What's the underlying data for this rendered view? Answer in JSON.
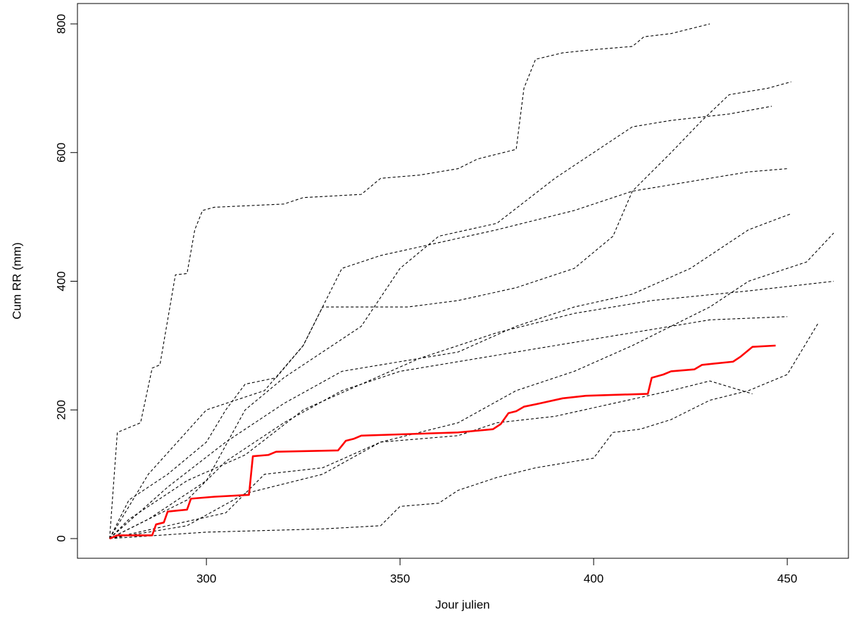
{
  "chart_data": {
    "type": "line",
    "xlabel": "Jour julien",
    "ylabel": "Cum RR (mm)",
    "xlim": [
      266.7,
      465.8
    ],
    "ylim": [
      -30.6,
      831.7
    ],
    "xticks": [
      300,
      350,
      400,
      450
    ],
    "yticks": [
      0,
      200,
      400,
      600,
      800
    ],
    "series": [
      {
        "color": "#000000",
        "linestyle": "dashed",
        "x": [
          275,
          277,
          283,
          286,
          288,
          290,
          292,
          295,
          297,
          299,
          302,
          320,
          325,
          340,
          345,
          355,
          365,
          370,
          380,
          382,
          385,
          392,
          400,
          410,
          413,
          420,
          430
        ],
        "values": [
          0,
          165,
          180,
          265,
          270,
          340,
          410,
          412,
          480,
          510,
          515,
          520,
          530,
          535,
          560,
          565,
          575,
          590,
          605,
          700,
          745,
          755,
          760,
          765,
          780,
          785,
          800
        ]
      },
      {
        "color": "#000000",
        "linestyle": "dashed",
        "x": [
          275,
          280,
          290,
          300,
          305,
          310,
          318,
          325,
          330,
          345,
          352,
          365,
          380,
          395,
          405,
          410,
          420,
          428,
          435,
          445,
          451
        ],
        "values": [
          0,
          60,
          100,
          150,
          200,
          240,
          250,
          300,
          360,
          360,
          360,
          370,
          390,
          420,
          470,
          540,
          600,
          650,
          690,
          700,
          710
        ]
      },
      {
        "color": "#000000",
        "linestyle": "dashed",
        "x": [
          275,
          285,
          300,
          310,
          320,
          330,
          340,
          350,
          360,
          375,
          390,
          400,
          410,
          420,
          435,
          446
        ],
        "values": [
          0,
          30,
          90,
          200,
          250,
          290,
          330,
          420,
          470,
          490,
          560,
          600,
          640,
          650,
          660,
          672
        ]
      },
      {
        "color": "#000000",
        "linestyle": "dashed",
        "x": [
          275,
          290,
          305,
          320,
          335,
          345,
          365,
          380,
          395,
          410,
          425,
          440,
          451
        ],
        "values": [
          0,
          80,
          150,
          210,
          260,
          270,
          290,
          330,
          360,
          380,
          420,
          480,
          505
        ]
      },
      {
        "color": "#000000",
        "linestyle": "dashed",
        "x": [
          275,
          295,
          310,
          330,
          345,
          355,
          365,
          380,
          395,
          410,
          420,
          430,
          440,
          455,
          462
        ],
        "values": [
          0,
          20,
          70,
          100,
          150,
          165,
          180,
          230,
          260,
          300,
          330,
          360,
          400,
          430,
          475
        ]
      },
      {
        "color": "#000000",
        "linestyle": "dashed",
        "x": [
          275,
          300,
          330,
          345,
          350,
          360,
          365,
          375,
          385,
          400,
          405,
          412,
          420,
          430,
          440,
          450,
          458
        ],
        "values": [
          0,
          10,
          15,
          20,
          50,
          55,
          75,
          95,
          110,
          125,
          165,
          170,
          185,
          215,
          230,
          255,
          335
        ]
      },
      {
        "color": "#000000",
        "linestyle": "dashed",
        "x": [
          275,
          305,
          315,
          330,
          345,
          365,
          375,
          390,
          405,
          420,
          430,
          441
        ],
        "values": [
          0,
          40,
          100,
          110,
          150,
          160,
          180,
          190,
          210,
          230,
          245,
          225
        ]
      },
      {
        "color": "#000000",
        "linestyle": "dashed",
        "x": [
          275,
          285,
          300,
          315,
          325,
          335,
          345,
          360,
          375,
          395,
          410,
          425,
          440,
          450
        ],
        "values": [
          0,
          100,
          200,
          230,
          300,
          420,
          440,
          460,
          480,
          510,
          540,
          555,
          570,
          575
        ]
      },
      {
        "color": "#000000",
        "linestyle": "dashed",
        "x": [
          275,
          295,
          305,
          320,
          335,
          350,
          370,
          390,
          410,
          430,
          450
        ],
        "values": [
          0,
          60,
          120,
          180,
          230,
          260,
          280,
          300,
          320,
          340,
          345
        ]
      },
      {
        "color": "#000000",
        "linestyle": "dashed",
        "x": [
          275,
          280,
          295,
          310,
          325,
          340,
          355,
          375,
          395,
          415,
          440,
          462
        ],
        "values": [
          0,
          30,
          90,
          130,
          200,
          240,
          280,
          320,
          350,
          370,
          385,
          400
        ]
      },
      {
        "color": "#ff0000",
        "linestyle": "solid",
        "x": [
          275,
          277,
          286,
          287,
          289,
          290,
          295,
          296,
          302,
          311,
          312,
          316,
          318,
          334,
          336,
          338,
          340,
          350,
          365,
          374,
          376,
          378,
          380,
          382,
          386,
          392,
          398,
          414,
          415,
          418,
          420,
          426,
          428,
          436,
          438,
          441,
          447
        ],
        "values": [
          0,
          5,
          5,
          22,
          25,
          42,
          45,
          62,
          65,
          68,
          128,
          130,
          135,
          137,
          152,
          155,
          160,
          162,
          165,
          170,
          178,
          195,
          198,
          205,
          210,
          218,
          222,
          225,
          250,
          255,
          260,
          263,
          270,
          275,
          283,
          298,
          300
        ]
      }
    ]
  }
}
